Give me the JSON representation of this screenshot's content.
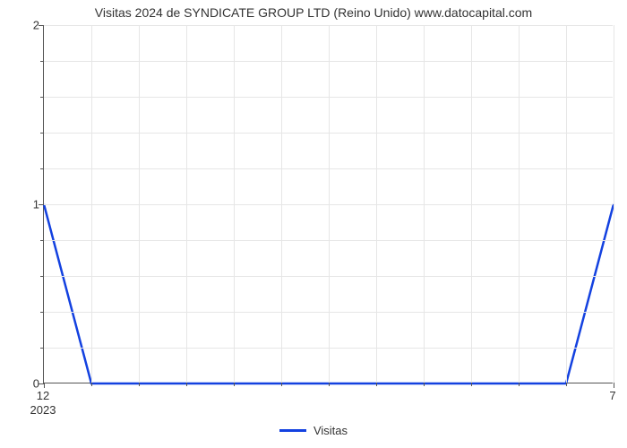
{
  "chart": {
    "type": "line",
    "title": "Visitas 2024 de SYNDICATE GROUP LTD (Reino Unido) www.datocapital.com",
    "title_fontsize": 14,
    "background_color": "#ffffff",
    "grid_color": "#e6e6e6",
    "axis_color": "#555555",
    "tick_label_color": "#333333",
    "tick_label_fontsize": 13,
    "x": {
      "points": [
        0,
        1,
        2,
        3,
        4,
        5,
        6,
        7,
        8,
        9,
        10,
        11,
        12
      ],
      "major_tick_labels": {
        "0": "12",
        "12": "7"
      },
      "year_label": "2023",
      "year_label_at": 0,
      "vgrid_every": 1,
      "minor_tick_at": [
        1,
        2,
        3,
        4,
        5,
        6,
        7,
        8,
        9,
        10,
        11
      ]
    },
    "y": {
      "limits": [
        0,
        2
      ],
      "major_ticks": [
        0,
        1,
        2
      ],
      "minor_ticks": [
        0.2,
        0.4,
        0.6,
        0.8,
        1.2,
        1.4,
        1.6,
        1.8
      ],
      "hgrid_at": [
        0.2,
        0.4,
        0.6,
        0.8,
        1.0,
        1.2,
        1.4,
        1.6,
        1.8,
        2.0
      ]
    },
    "series": {
      "name": "Visitas",
      "color": "#1341e0",
      "line_width": 2.5,
      "x": [
        0,
        1,
        2,
        3,
        4,
        5,
        6,
        7,
        8,
        9,
        10,
        11,
        12
      ],
      "values": [
        1,
        0,
        0,
        0,
        0,
        0,
        0,
        0,
        0,
        0,
        0,
        0,
        1
      ]
    },
    "legend": {
      "label": "Visitas",
      "line_color": "#1341e0",
      "line_width": 3
    }
  }
}
